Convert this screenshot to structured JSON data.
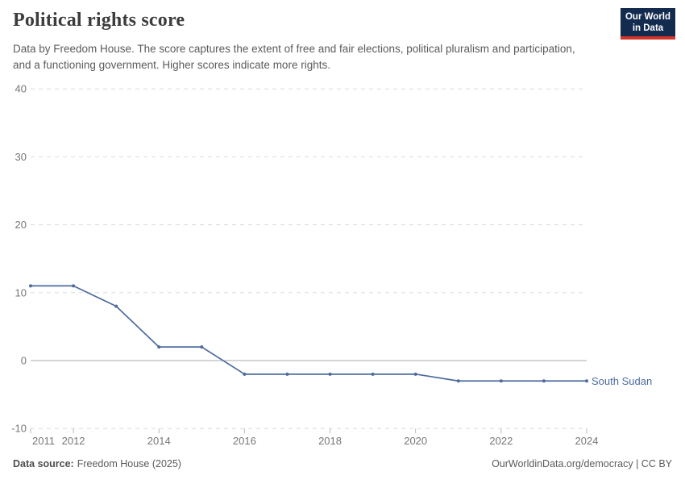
{
  "header": {
    "title": "Political rights score",
    "subtitle": "Data by Freedom House. The score captures the extent of free and fair elections, political pluralism and participation, and a functioning government. Higher scores indicate more rights.",
    "logo": {
      "line1": "Our World",
      "line2": "in Data"
    }
  },
  "chart_data": {
    "type": "line",
    "title": "Political rights score",
    "x": [
      2011,
      2012,
      2013,
      2014,
      2015,
      2016,
      2017,
      2018,
      2019,
      2020,
      2021,
      2022,
      2023,
      2024
    ],
    "series": [
      {
        "name": "South Sudan",
        "values": [
          11,
          11,
          8,
          2,
          2,
          -2,
          -2,
          -2,
          -2,
          -2,
          -3,
          -3,
          -3,
          -3
        ],
        "color": "#4C6B9E"
      }
    ],
    "entity_label": "South Sudan",
    "xlabel": "",
    "ylabel": "",
    "ylim": [
      -10,
      40
    ],
    "yticks": [
      -10,
      0,
      10,
      20,
      30,
      40
    ],
    "xticks": [
      2011,
      2012,
      2014,
      2016,
      2018,
      2020,
      2022,
      2024
    ],
    "grid": "horizontal-dashed",
    "legend_position": "end-of-line"
  },
  "colors": {
    "line": "#4C6B9E",
    "grid": "#dcdcdc",
    "zero_line": "#ababab",
    "axis_text": "#777777",
    "tick_mark": "#b8b8b8",
    "logo_navy": "#122b4f",
    "logo_red": "#d5342b"
  },
  "footer": {
    "datasource_label": "Data source:",
    "datasource_value": "Freedom House (2025)",
    "attribution": "OurWorldinData.org/democracy | CC BY"
  }
}
